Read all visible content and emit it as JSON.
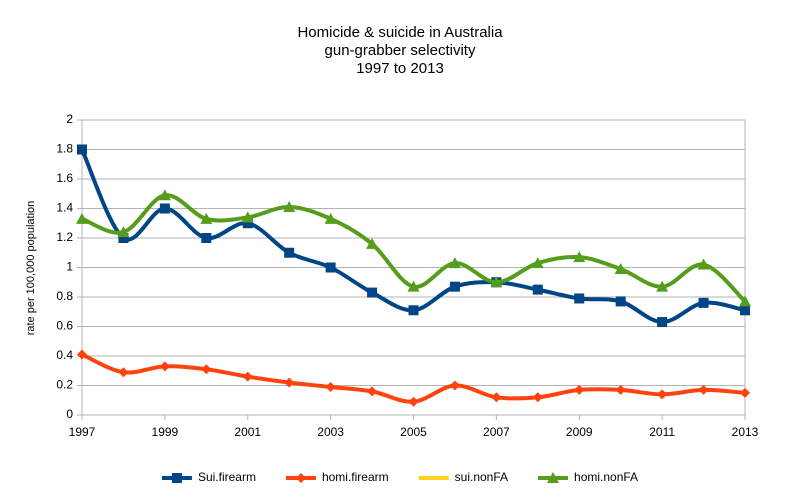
{
  "chart_data": {
    "type": "line",
    "title": [
      "Homicide & suicide in Australia",
      "gun-grabber selectivity",
      "1997 to 2013"
    ],
    "y_label": "rate per 100,000 population",
    "x": [
      1997,
      1998,
      1999,
      2000,
      2001,
      2002,
      2003,
      2004,
      2005,
      2006,
      2007,
      2008,
      2009,
      2010,
      2011,
      2012,
      2013
    ],
    "xlim": [
      1997,
      2013
    ],
    "xticks": [
      1997,
      1999,
      2001,
      2003,
      2005,
      2007,
      2009,
      2011,
      2013
    ],
    "ylim": [
      0,
      2
    ],
    "yticks": [
      0,
      0.2,
      0.4,
      0.6,
      0.8,
      1,
      1.2,
      1.4,
      1.6,
      1.8,
      2
    ],
    "grid": true,
    "smooth": true,
    "legend": "bottom",
    "series": [
      {
        "name": "Sui.firearm",
        "color": "#004586",
        "marker": "square",
        "values": [
          1.8,
          1.2,
          1.4,
          1.2,
          1.3,
          1.1,
          1.0,
          0.83,
          0.71,
          0.87,
          0.9,
          0.85,
          0.79,
          0.77,
          0.63,
          0.76,
          0.71
        ]
      },
      {
        "name": "homi.firearm",
        "color": "#ff420e",
        "marker": "diamond",
        "values": [
          0.41,
          0.29,
          0.33,
          0.31,
          0.26,
          0.22,
          0.19,
          0.16,
          0.09,
          0.2,
          0.12,
          0.12,
          0.17,
          0.17,
          0.14,
          0.17,
          0.15
        ]
      },
      {
        "name": "sui.nonFA",
        "color": "#ffd320",
        "values": [
          null,
          null,
          null,
          null,
          null,
          null,
          null,
          null,
          null,
          null,
          null,
          null,
          null,
          null,
          null,
          null,
          null
        ]
      },
      {
        "name": "homi.nonFA",
        "color": "#579d1c",
        "marker": "triangle",
        "values": [
          1.33,
          1.24,
          1.49,
          1.33,
          1.34,
          1.41,
          1.33,
          1.16,
          0.87,
          1.03,
          0.9,
          1.03,
          1.07,
          0.99,
          0.87,
          1.02,
          0.77
        ]
      }
    ]
  }
}
